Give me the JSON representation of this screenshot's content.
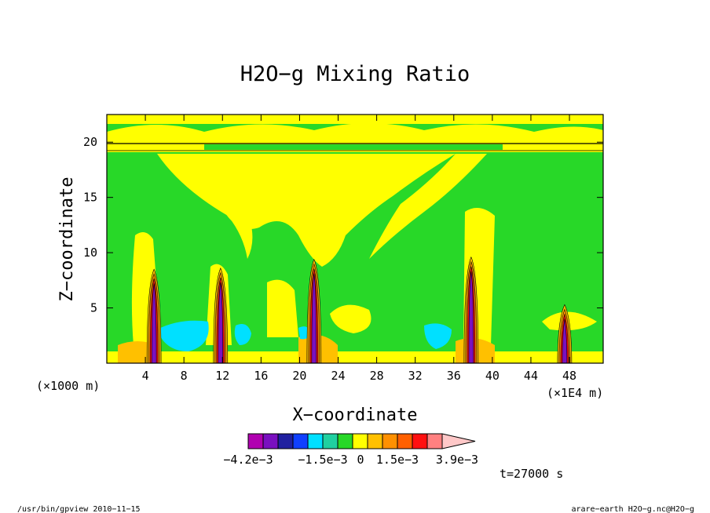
{
  "chart_data": {
    "type": "heatmap",
    "title": "H2O−g Mixing Ratio",
    "xlabel": "X−coordinate",
    "ylabel": "Z−coordinate",
    "x_unit_left": "(×1000 m)",
    "x_unit_right": "(×1E4 m)",
    "xlim": [
      0,
      51.5
    ],
    "ylim": [
      0,
      22.5
    ],
    "x_ticks": [
      4,
      8,
      12,
      16,
      20,
      24,
      28,
      32,
      36,
      40,
      44,
      48
    ],
    "y_ticks": [
      5,
      10,
      15,
      20
    ],
    "colorbar": {
      "colors": [
        "#b000b0",
        "#7a10c0",
        "#2020a0",
        "#1040ff",
        "#00e0ff",
        "#20d0a0",
        "#28d828",
        "#ffff00",
        "#ffc000",
        "#ff9000",
        "#ff6000",
        "#ff1010",
        "#ff8080",
        "#ffc8c8"
      ],
      "labels": [
        "−4.2e−3",
        "−1.5e−3",
        "0",
        "1.5e−3",
        "3.9e−3"
      ]
    },
    "time_label": "t=27000 s",
    "updraft_columns": [
      {
        "x": 4.9,
        "top": 8.5
      },
      {
        "x": 11.8,
        "top": 8.6
      },
      {
        "x": 21.5,
        "top": 9.4
      },
      {
        "x": 37.8,
        "top": 9.6
      },
      {
        "x": 47.5,
        "top": 5.3
      }
    ]
  },
  "footer": {
    "left": "/usr/bin/gpview  2010−11−15",
    "right": "arare−earth_H2O−g.nc@H2O−g"
  }
}
